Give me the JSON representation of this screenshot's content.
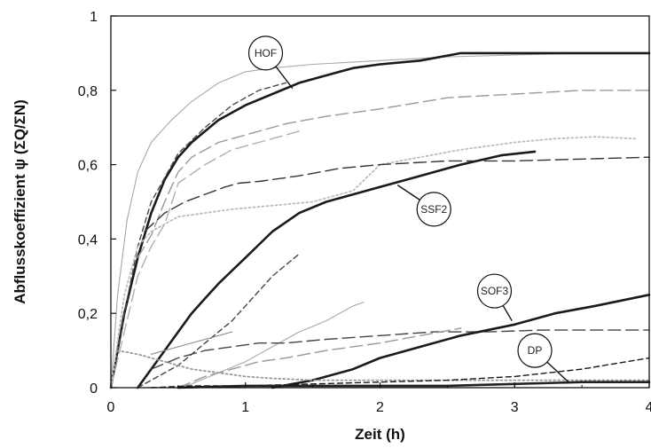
{
  "chart_data": {
    "type": "line",
    "xlabel": "Zeit (h)",
    "ylabel": "Abflusskoeffizient ψ (ΣQ/ΣN)",
    "xlim": [
      0,
      4
    ],
    "ylim": [
      0,
      1
    ],
    "x_ticks": [
      "0",
      "1",
      "2",
      "3",
      "4"
    ],
    "y_ticks": [
      "0",
      "0,2",
      "0,4",
      "0,6",
      "0,8",
      "1"
    ],
    "grid": false,
    "legend": "none",
    "annotations": [
      {
        "text": "HOF",
        "x": 1.15,
        "y": 0.9,
        "target_x": 1.35,
        "target_y": 0.805
      },
      {
        "text": "SSF2",
        "x": 2.4,
        "y": 0.48,
        "target_x": 2.13,
        "target_y": 0.545
      },
      {
        "text": "SOF3",
        "x": 2.85,
        "y": 0.26,
        "target_x": 2.98,
        "target_y": 0.18
      },
      {
        "text": "DP",
        "x": 3.15,
        "y": 0.1,
        "target_x": 3.4,
        "target_y": 0.015
      }
    ],
    "series": [
      {
        "style": "thin-solid",
        "color": "#a8a8a8",
        "x": [
          0,
          0.05,
          0.12,
          0.2,
          0.3,
          0.45,
          0.6,
          0.8,
          1.0,
          1.2,
          1.5,
          2.0,
          2.5,
          3.0,
          3.5,
          4.0
        ],
        "y": [
          0,
          0.25,
          0.45,
          0.58,
          0.66,
          0.72,
          0.77,
          0.82,
          0.85,
          0.86,
          0.87,
          0.88,
          0.89,
          0.895,
          0.9,
          0.9
        ]
      },
      {
        "style": "thick-solid",
        "color": "#1a1a1a",
        "x": [
          0,
          0.1,
          0.2,
          0.3,
          0.4,
          0.5,
          0.6,
          0.8,
          1.0,
          1.2,
          1.4,
          1.6,
          1.8,
          2.0,
          2.3,
          2.6,
          3.0,
          3.5,
          4.0
        ],
        "y": [
          0,
          0.2,
          0.35,
          0.47,
          0.56,
          0.62,
          0.66,
          0.72,
          0.76,
          0.79,
          0.82,
          0.84,
          0.86,
          0.87,
          0.88,
          0.9,
          0.9,
          0.9,
          0.9
        ]
      },
      {
        "style": "dash",
        "color": "#4a4a4a",
        "x": [
          0,
          0.1,
          0.2,
          0.3,
          0.5,
          0.7,
          0.9,
          1.1,
          1.3
        ],
        "y": [
          0,
          0.2,
          0.38,
          0.5,
          0.63,
          0.7,
          0.76,
          0.8,
          0.82
        ]
      },
      {
        "style": "long-dash",
        "color": "#999999",
        "x": [
          0.2,
          0.3,
          0.4,
          0.5,
          0.6,
          0.8,
          1.0,
          1.3,
          1.6,
          2.0,
          2.5,
          3.0,
          3.5,
          4.0
        ],
        "y": [
          0.35,
          0.41,
          0.5,
          0.58,
          0.62,
          0.66,
          0.68,
          0.71,
          0.73,
          0.75,
          0.78,
          0.79,
          0.8,
          0.8
        ]
      },
      {
        "style": "long-dash",
        "color": "#b0b0b0",
        "x": [
          0,
          0.1,
          0.2,
          0.3,
          0.4,
          0.5,
          0.7,
          0.9,
          1.1,
          1.4
        ],
        "y": [
          0,
          0.15,
          0.3,
          0.38,
          0.44,
          0.55,
          0.6,
          0.64,
          0.66,
          0.69
        ]
      },
      {
        "style": "dot",
        "color": "#bcbcbc",
        "x": [
          0,
          0.1,
          0.2,
          0.3,
          0.4,
          0.5,
          0.7,
          0.9,
          1.2,
          1.5,
          1.8,
          2.0,
          2.3,
          2.6,
          3.0,
          3.3,
          3.6,
          3.9
        ],
        "y": [
          0,
          0.25,
          0.38,
          0.42,
          0.44,
          0.46,
          0.47,
          0.48,
          0.49,
          0.5,
          0.53,
          0.6,
          0.62,
          0.64,
          0.66,
          0.67,
          0.675,
          0.67
        ]
      },
      {
        "style": "long-dash",
        "color": "#333333",
        "x": [
          0.25,
          0.4,
          0.55,
          0.7,
          0.85,
          0.95,
          1.1,
          1.2,
          1.4,
          1.7,
          2.0,
          2.5,
          3.0,
          3.5,
          4.0
        ],
        "y": [
          0.42,
          0.47,
          0.5,
          0.52,
          0.54,
          0.55,
          0.555,
          0.56,
          0.57,
          0.59,
          0.6,
          0.61,
          0.61,
          0.615,
          0.62
        ]
      },
      {
        "style": "thick-solid",
        "color": "#1a1a1a",
        "x": [
          0.2,
          0.3,
          0.4,
          0.5,
          0.6,
          0.7,
          0.8,
          1.0,
          1.2,
          1.4,
          1.6,
          1.8,
          2.0,
          2.3,
          2.6,
          2.9,
          3.15
        ],
        "y": [
          0,
          0.05,
          0.1,
          0.15,
          0.2,
          0.24,
          0.28,
          0.35,
          0.42,
          0.47,
          0.5,
          0.52,
          0.54,
          0.57,
          0.6,
          0.625,
          0.635
        ]
      },
      {
        "style": "dash",
        "color": "#444444",
        "x": [
          0.2,
          0.3,
          0.4,
          0.5,
          0.6,
          0.7,
          0.8,
          0.9,
          1.0,
          1.1,
          1.2,
          1.3,
          1.4
        ],
        "y": [
          0,
          0.02,
          0.04,
          0.06,
          0.09,
          0.12,
          0.15,
          0.18,
          0.22,
          0.26,
          0.3,
          0.33,
          0.36
        ]
      },
      {
        "style": "thin-solid",
        "color": "#a8a8a8",
        "x": [
          0.5,
          0.6,
          0.8,
          1.0,
          1.2,
          1.4,
          1.6,
          1.8,
          1.88
        ],
        "y": [
          0,
          0.01,
          0.04,
          0.07,
          0.11,
          0.15,
          0.18,
          0.22,
          0.23
        ]
      },
      {
        "style": "thin-solid",
        "color": "#888888",
        "x": [
          0.3,
          0.5,
          0.7,
          0.9
        ],
        "y": [
          0.09,
          0.11,
          0.13,
          0.15
        ]
      },
      {
        "style": "long-dash",
        "color": "#444444",
        "x": [
          0.3,
          0.5,
          0.7,
          0.9,
          1.1,
          1.3,
          1.6,
          2.0,
          2.4,
          2.8,
          3.2,
          3.6,
          4.0
        ],
        "y": [
          0.05,
          0.08,
          0.1,
          0.11,
          0.12,
          0.12,
          0.13,
          0.14,
          0.15,
          0.15,
          0.155,
          0.155,
          0.155
        ]
      },
      {
        "style": "long-dash",
        "color": "#999999",
        "x": [
          0.5,
          0.7,
          0.9,
          1.1,
          1.3,
          1.6,
          2.0,
          2.3,
          2.6
        ],
        "y": [
          0,
          0.03,
          0.05,
          0.07,
          0.08,
          0.1,
          0.12,
          0.14,
          0.16
        ]
      },
      {
        "style": "thick-solid",
        "color": "#1a1a1a",
        "x": [
          1.2,
          1.5,
          1.8,
          2.0,
          2.3,
          2.6,
          3.0,
          3.3,
          3.6,
          4.0
        ],
        "y": [
          0,
          0.02,
          0.05,
          0.08,
          0.11,
          0.14,
          0.17,
          0.2,
          0.22,
          0.25
        ]
      },
      {
        "style": "dot",
        "color": "#999999",
        "x": [
          0.05,
          0.2,
          0.4,
          0.6,
          0.8,
          1.0,
          1.2,
          1.5,
          2.0,
          2.5,
          3.0,
          3.5,
          4.0
        ],
        "y": [
          0.1,
          0.09,
          0.07,
          0.05,
          0.04,
          0.03,
          0.025,
          0.02,
          0.02,
          0.02,
          0.02,
          0.02,
          0.02
        ]
      },
      {
        "style": "dash",
        "color": "#1a1a1a",
        "x": [
          0.3,
          0.6,
          1.0,
          1.5,
          2.0,
          2.5,
          3.0,
          3.5,
          4.0
        ],
        "y": [
          0,
          0.005,
          0.005,
          0.01,
          0.015,
          0.02,
          0.03,
          0.05,
          0.08
        ]
      },
      {
        "style": "thick-solid",
        "color": "#222222",
        "x": [
          0.5,
          1.0,
          1.5,
          2.0,
          2.5,
          3.0,
          3.5,
          4.0
        ],
        "y": [
          0,
          0.005,
          0.005,
          0.005,
          0.005,
          0.01,
          0.015,
          0.015
        ]
      }
    ]
  }
}
